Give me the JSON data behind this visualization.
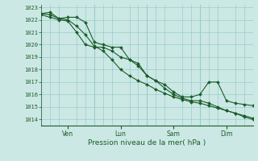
{
  "xlabel": "Pression niveau de la mer( hPa )",
  "bg_color": "#cce8e4",
  "grid_color": "#99cccc",
  "line_color": "#1a5c2a",
  "ylim": [
    1013.5,
    1023.2
  ],
  "yticks": [
    1014,
    1015,
    1016,
    1017,
    1018,
    1019,
    1020,
    1021,
    1022,
    1023
  ],
  "xlim": [
    0,
    96
  ],
  "day_ticks": [
    12,
    36,
    60,
    84
  ],
  "day_labels": [
    "Ven",
    "Lun",
    "Sam",
    "Dim"
  ],
  "vlines": [
    0,
    24,
    48,
    72,
    96
  ],
  "minor_x_ticks": [
    0,
    4,
    8,
    12,
    16,
    20,
    24,
    28,
    32,
    36,
    40,
    44,
    48,
    52,
    56,
    60,
    64,
    68,
    72,
    76,
    80,
    84,
    88,
    92,
    96
  ],
  "series1_x": [
    0,
    4,
    8,
    12,
    16,
    20,
    24,
    28,
    32,
    36,
    40,
    44,
    48,
    52,
    56,
    60,
    64,
    68,
    72,
    76,
    80,
    84,
    88,
    92,
    96
  ],
  "series1_y": [
    1022.5,
    1022.6,
    1022.1,
    1022.0,
    1021.5,
    1020.8,
    1019.9,
    1019.5,
    1018.8,
    1018.0,
    1017.5,
    1017.1,
    1016.8,
    1016.4,
    1016.1,
    1015.8,
    1015.6,
    1015.4,
    1015.3,
    1015.1,
    1014.9,
    1014.7,
    1014.5,
    1014.2,
    1014.0
  ],
  "series2_x": [
    0,
    4,
    8,
    12,
    16,
    20,
    24,
    28,
    32,
    36,
    40,
    44,
    48,
    52,
    56,
    60,
    64,
    68,
    72,
    76,
    80,
    84,
    88,
    92,
    96
  ],
  "series2_y": [
    1022.4,
    1022.2,
    1022.0,
    1021.9,
    1021.0,
    1020.0,
    1019.8,
    1019.8,
    1019.5,
    1019.0,
    1018.8,
    1018.3,
    1017.5,
    1017.1,
    1016.8,
    1016.2,
    1015.8,
    1015.8,
    1016.0,
    1017.0,
    1017.0,
    1015.5,
    1015.3,
    1015.2,
    1015.1
  ],
  "series3_x": [
    0,
    4,
    8,
    12,
    16,
    20,
    24,
    28,
    32,
    36,
    40,
    44,
    48,
    52,
    56,
    60,
    64,
    68,
    72,
    76,
    80,
    84,
    88,
    92,
    96
  ],
  "series3_y": [
    1022.5,
    1022.4,
    1022.1,
    1022.2,
    1022.2,
    1021.8,
    1020.2,
    1020.0,
    1019.8,
    1019.8,
    1018.8,
    1018.5,
    1017.5,
    1017.1,
    1016.5,
    1016.0,
    1015.7,
    1015.5,
    1015.5,
    1015.3,
    1015.0,
    1014.7,
    1014.5,
    1014.3,
    1014.1
  ],
  "markersize": 2.0,
  "linewidth": 0.8
}
